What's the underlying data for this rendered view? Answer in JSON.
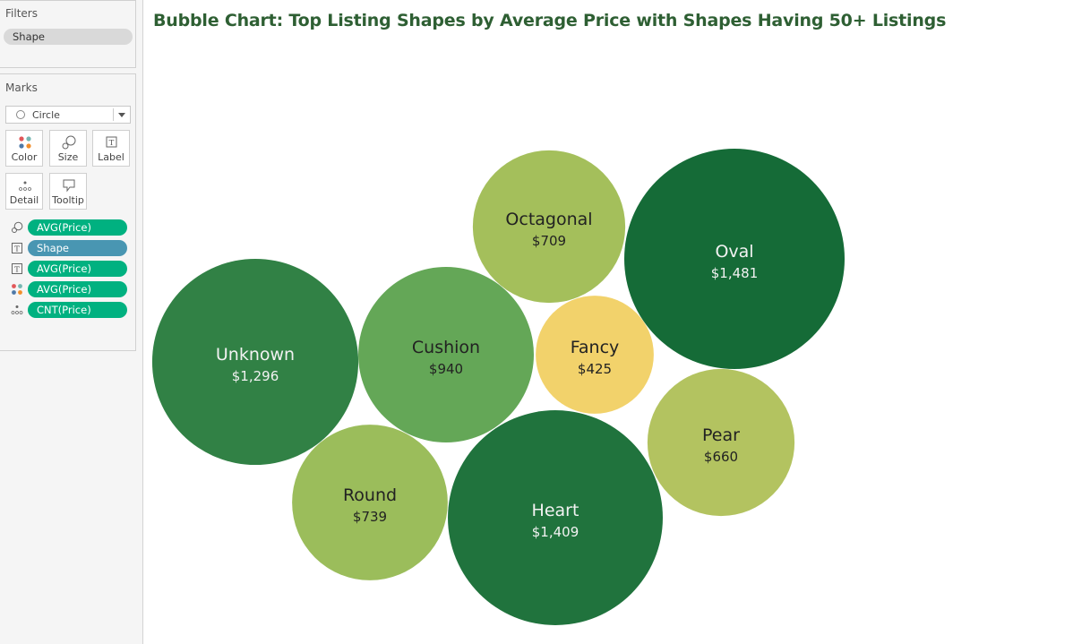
{
  "filters": {
    "title": "Filters",
    "items": [
      "Shape"
    ]
  },
  "marks": {
    "title": "Marks",
    "mark_type": "Circle",
    "buttons": {
      "color": "Color",
      "size": "Size",
      "label": "Label",
      "detail": "Detail",
      "tooltip": "Tooltip"
    },
    "fields": [
      {
        "icon": "size-icon",
        "label": "AVG(Price)",
        "kind": "measure"
      },
      {
        "icon": "label-icon",
        "label": "Shape",
        "kind": "dimension"
      },
      {
        "icon": "label-icon",
        "label": "AVG(Price)",
        "kind": "measure"
      },
      {
        "icon": "color-icon",
        "label": "AVG(Price)",
        "kind": "measure"
      },
      {
        "icon": "detail-icon",
        "label": "CNT(Price)",
        "kind": "measure"
      }
    ]
  },
  "colors": {
    "measure_pill": "#00b180",
    "dimension_pill": "#4996b2",
    "title": "#2e5f33"
  },
  "chart_data": {
    "type": "bubble",
    "title": "Bubble Chart: Top Listing Shapes by Average Price with Shapes Having 50+ Listings",
    "size_measure": "AVG(Price)",
    "color_measure": "AVG(Price)",
    "bubbles": [
      {
        "shape": "Oval",
        "label": "$1,481",
        "avg_price": 1481,
        "color": "#156b37"
      },
      {
        "shape": "Heart",
        "label": "$1,409",
        "avg_price": 1409,
        "color": "#20733d"
      },
      {
        "shape": "Unknown",
        "label": "$1,296",
        "avg_price": 1296,
        "color": "#318145"
      },
      {
        "shape": "Cushion",
        "label": "$940",
        "avg_price": 940,
        "color": "#64a757"
      },
      {
        "shape": "Round",
        "label": "$739",
        "avg_price": 739,
        "color": "#9bbd5b"
      },
      {
        "shape": "Octagonal",
        "label": "$709",
        "avg_price": 709,
        "color": "#a4bf5b"
      },
      {
        "shape": "Pear",
        "label": "$660",
        "avg_price": 660,
        "color": "#b3c360"
      },
      {
        "shape": "Fancy",
        "label": "$425",
        "avg_price": 425,
        "color": "#f2d26b"
      }
    ]
  }
}
